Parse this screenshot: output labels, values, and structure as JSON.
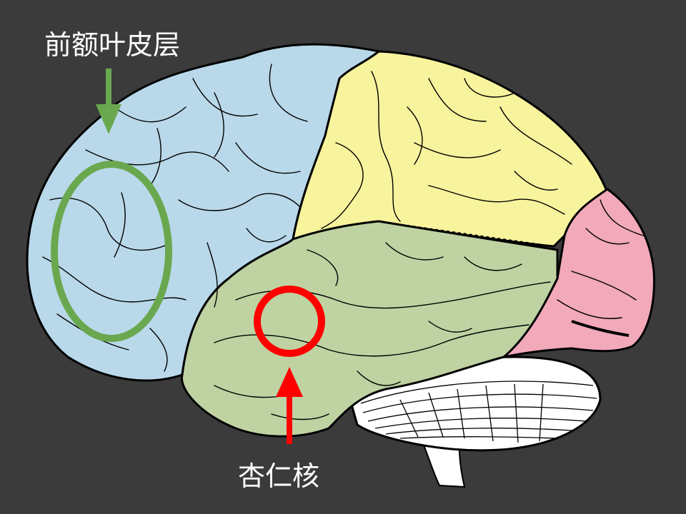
{
  "labels": {
    "prefrontal_cortex": "前额叶皮层",
    "amygdala": "杏仁核"
  },
  "colors": {
    "background": "#3b3b3b",
    "frontal_lobe": "#b9d9ea",
    "parietal_lobe": "#f8f39d",
    "temporal_lobe": "#bfd3a2",
    "occipital_lobe": "#f2a9ba",
    "cerebellum": "#ffffff",
    "outline": "#000000",
    "pfc_marker": "#6aa84f",
    "amygdala_marker": "#ff0000"
  }
}
